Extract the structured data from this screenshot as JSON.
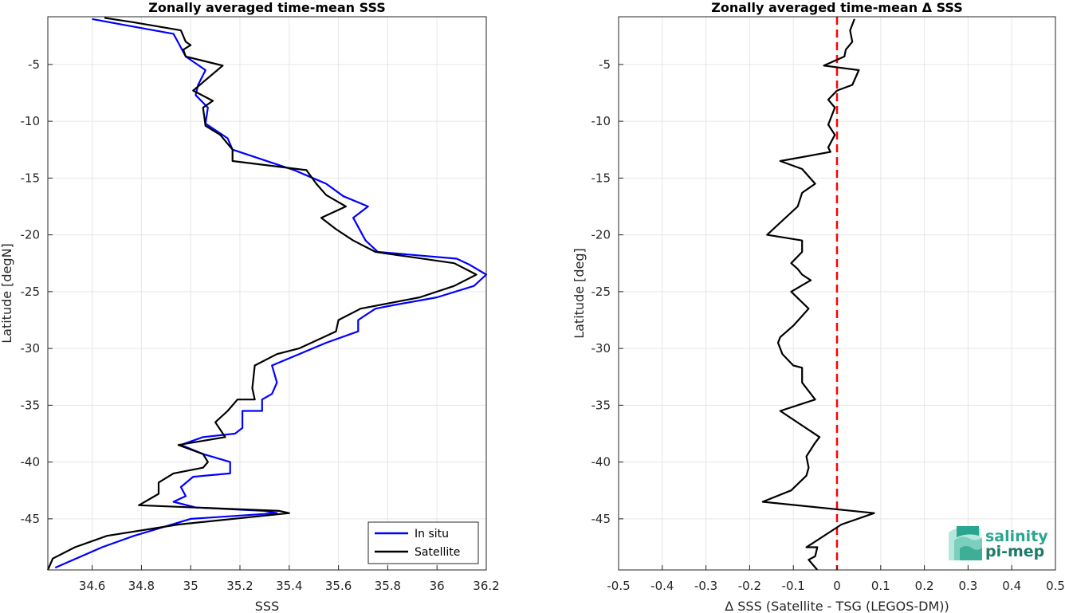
{
  "chart_data": [
    {
      "type": "line",
      "title": "Zonally averaged time-mean SSS",
      "xlabel": "SSS",
      "ylabel": "Latitude [degN]",
      "xlim": [
        34.42,
        36.2
      ],
      "ylim": [
        -49.5,
        -0.8
      ],
      "xticks": [
        "34.6",
        "34.8",
        "35",
        "35.2",
        "35.4",
        "35.6",
        "35.8",
        "36",
        "36.2"
      ],
      "yticks": [
        "-5",
        "-10",
        "-15",
        "-20",
        "-25",
        "-30",
        "-35",
        "-40",
        "-45"
      ],
      "grid": true,
      "legend_position": "bottom-right",
      "series": [
        {
          "name": "In situ",
          "color": "#0000ff",
          "points": [
            [
              34.6,
              -1
            ],
            [
              34.75,
              -1.6
            ],
            [
              34.93,
              -2.3
            ],
            [
              34.98,
              -4.3
            ],
            [
              35.06,
              -5.5
            ],
            [
              35.03,
              -6.8
            ],
            [
              35.02,
              -7.7
            ],
            [
              35.07,
              -8.8
            ],
            [
              35.06,
              -10.2
            ],
            [
              35.15,
              -11.5
            ],
            [
              35.17,
              -12.5
            ],
            [
              35.42,
              -14.3
            ],
            [
              35.55,
              -15.5
            ],
            [
              35.62,
              -16.6
            ],
            [
              35.72,
              -17.5
            ],
            [
              35.66,
              -18.5
            ],
            [
              35.69,
              -19.7
            ],
            [
              35.71,
              -20.5
            ],
            [
              35.76,
              -21.5
            ],
            [
              36.08,
              -22.1
            ],
            [
              36.13,
              -22.6
            ],
            [
              36.2,
              -23.5
            ],
            [
              36.15,
              -24.5
            ],
            [
              36.0,
              -25.5
            ],
            [
              35.82,
              -26.2
            ],
            [
              35.75,
              -26.5
            ],
            [
              35.68,
              -27.5
            ],
            [
              35.68,
              -28.5
            ],
            [
              35.55,
              -29.5
            ],
            [
              35.33,
              -31.5
            ],
            [
              35.35,
              -33.0
            ],
            [
              35.33,
              -34.0
            ],
            [
              35.29,
              -34.5
            ],
            [
              35.29,
              -35.5
            ],
            [
              35.21,
              -35.5
            ],
            [
              35.21,
              -37.0
            ],
            [
              35.18,
              -37.5
            ],
            [
              35.05,
              -37.8
            ],
            [
              34.96,
              -38.5
            ],
            [
              35.05,
              -39.3
            ],
            [
              35.16,
              -40.0
            ],
            [
              35.16,
              -41.0
            ],
            [
              35.01,
              -41.3
            ],
            [
              34.96,
              -42.2
            ],
            [
              34.98,
              -43.0
            ],
            [
              34.93,
              -43.5
            ],
            [
              35.02,
              -44.0
            ],
            [
              35.3,
              -44.3
            ],
            [
              35.35,
              -44.5
            ],
            [
              35.0,
              -45.0
            ],
            [
              34.77,
              -46.5
            ],
            [
              34.64,
              -47.5
            ],
            [
              34.45,
              -49.3
            ]
          ]
        },
        {
          "name": "Satellite",
          "color": "#000000",
          "points": [
            [
              34.65,
              -0.9
            ],
            [
              34.77,
              -1.3
            ],
            [
              34.96,
              -2.0
            ],
            [
              34.98,
              -3.0
            ],
            [
              35.0,
              -3.3
            ],
            [
              34.97,
              -3.7
            ],
            [
              34.98,
              -4.3
            ],
            [
              35.13,
              -5.1
            ],
            [
              35.01,
              -7.3
            ],
            [
              35.09,
              -8.2
            ],
            [
              35.05,
              -8.8
            ],
            [
              35.06,
              -10.4
            ],
            [
              35.12,
              -11.2
            ],
            [
              35.17,
              -12.5
            ],
            [
              35.17,
              -13.5
            ],
            [
              35.47,
              -14.3
            ],
            [
              35.51,
              -15.5
            ],
            [
              35.55,
              -16.5
            ],
            [
              35.63,
              -17.5
            ],
            [
              35.53,
              -18.5
            ],
            [
              35.59,
              -19.5
            ],
            [
              35.66,
              -20.5
            ],
            [
              35.75,
              -21.5
            ],
            [
              36.07,
              -22.5
            ],
            [
              36.16,
              -23.5
            ],
            [
              36.07,
              -24.5
            ],
            [
              35.93,
              -25.5
            ],
            [
              35.69,
              -26.5
            ],
            [
              35.6,
              -27.5
            ],
            [
              35.59,
              -28.5
            ],
            [
              35.44,
              -30.0
            ],
            [
              35.35,
              -30.5
            ],
            [
              35.26,
              -31.5
            ],
            [
              35.25,
              -33.5
            ],
            [
              35.26,
              -34.5
            ],
            [
              35.19,
              -34.5
            ],
            [
              35.15,
              -35.5
            ],
            [
              35.1,
              -36.5
            ],
            [
              35.14,
              -37.8
            ],
            [
              34.95,
              -38.5
            ],
            [
              35.05,
              -39.3
            ],
            [
              35.07,
              -40.0
            ],
            [
              35.05,
              -40.5
            ],
            [
              34.93,
              -41.0
            ],
            [
              34.87,
              -41.8
            ],
            [
              34.87,
              -42.8
            ],
            [
              34.79,
              -43.8
            ],
            [
              35.36,
              -44.3
            ],
            [
              35.4,
              -44.5
            ],
            [
              34.95,
              -45.5
            ],
            [
              34.66,
              -46.5
            ],
            [
              34.53,
              -47.5
            ],
            [
              34.44,
              -48.5
            ],
            [
              34.42,
              -49.5
            ]
          ]
        }
      ]
    },
    {
      "type": "line",
      "title": "Zonally averaged time-mean Δ SSS",
      "xlabel": "Δ SSS (Satellite - TSG (LEGOS-DM))",
      "ylabel": "Latitude [deg]",
      "xlim": [
        -0.5,
        0.5
      ],
      "ylim": [
        -49.5,
        -0.8
      ],
      "xticks": [
        "-0.5",
        "-0.4",
        "-0.3",
        "-0.2",
        "-0.1",
        "0",
        "0.1",
        "0.2",
        "0.3",
        "0.4",
        "0.5"
      ],
      "yticks": [
        "-5",
        "-10",
        "-15",
        "-20",
        "-25",
        "-30",
        "-35",
        "-40",
        "-45"
      ],
      "grid": true,
      "reference_line": {
        "x": 0,
        "color": "#ff0000",
        "style": "dashed"
      },
      "series": [
        {
          "name": "",
          "color": "#000000",
          "points": [
            [
              0.04,
              -1.0
            ],
            [
              0.03,
              -2.0
            ],
            [
              0.035,
              -3.0
            ],
            [
              0.02,
              -3.7
            ],
            [
              0.017,
              -4.3
            ],
            [
              -0.03,
              -5.1
            ],
            [
              0.05,
              -5.5
            ],
            [
              0.035,
              -6.8
            ],
            [
              0.0,
              -7.3
            ],
            [
              -0.02,
              -8.1
            ],
            [
              -0.005,
              -8.8
            ],
            [
              -0.02,
              -10.3
            ],
            [
              -0.005,
              -11.2
            ],
            [
              -0.02,
              -12.3
            ],
            [
              -0.015,
              -12.7
            ],
            [
              -0.13,
              -13.5
            ],
            [
              -0.08,
              -14.2
            ],
            [
              -0.05,
              -15.5
            ],
            [
              -0.08,
              -16.3
            ],
            [
              -0.09,
              -17.5
            ],
            [
              -0.16,
              -20.0
            ],
            [
              -0.08,
              -20.5
            ],
            [
              -0.08,
              -21.5
            ],
            [
              -0.105,
              -22.5
            ],
            [
              -0.09,
              -23.0
            ],
            [
              -0.08,
              -23.5
            ],
            [
              -0.06,
              -24.0
            ],
            [
              -0.105,
              -25.0
            ],
            [
              -0.065,
              -26.5
            ],
            [
              -0.1,
              -28.0
            ],
            [
              -0.13,
              -29.0
            ],
            [
              -0.135,
              -29.5
            ],
            [
              -0.125,
              -30.5
            ],
            [
              -0.1,
              -31.5
            ],
            [
              -0.08,
              -31.7
            ],
            [
              -0.08,
              -33.0
            ],
            [
              -0.05,
              -34.5
            ],
            [
              -0.13,
              -35.5
            ],
            [
              -0.04,
              -37.8
            ],
            [
              -0.05,
              -38.3
            ],
            [
              -0.07,
              -39.5
            ],
            [
              -0.065,
              -40.5
            ],
            [
              -0.07,
              -41.2
            ],
            [
              -0.105,
              -42.5
            ],
            [
              -0.17,
              -43.5
            ],
            [
              0.085,
              -44.5
            ],
            [
              0.01,
              -45.5
            ],
            [
              -0.07,
              -47.5
            ],
            [
              -0.045,
              -47.5
            ],
            [
              -0.05,
              -48.3
            ],
            [
              -0.065,
              -48.6
            ],
            [
              -0.045,
              -49.5
            ]
          ]
        }
      ]
    }
  ],
  "legend": {
    "items": [
      {
        "label": "In situ",
        "color": "#0000ff"
      },
      {
        "label": "Satellite",
        "color": "#000000"
      }
    ]
  },
  "logo": {
    "line1": "salinity",
    "line2": "pi-mep"
  }
}
